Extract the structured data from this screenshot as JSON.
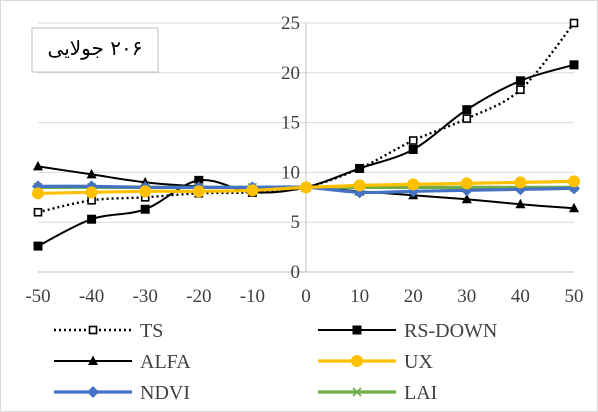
{
  "chart_data": {
    "type": "line",
    "title": "",
    "annotation": "۲۰۶ جولایی",
    "xlabel": "",
    "ylabel": "",
    "x": [
      -50,
      -40,
      -30,
      -20,
      -10,
      0,
      10,
      20,
      30,
      40,
      50
    ],
    "x_tick_labels": [
      "-50",
      "-40",
      "-30",
      "-20",
      "-10",
      "0",
      "10",
      "20",
      "30",
      "40",
      "50"
    ],
    "y_tick_labels": [
      "0",
      "5",
      "10",
      "15",
      "20",
      "25"
    ],
    "ylim": [
      0,
      25
    ],
    "y_ticks": [
      0,
      5,
      10,
      15,
      20,
      25
    ],
    "grid": "horizontal",
    "legend_position": "bottom",
    "series": [
      {
        "name": "TS",
        "color": "#000000",
        "dash": "dotted",
        "marker": "hollow-square",
        "values": [
          6.0,
          7.2,
          7.5,
          7.9,
          8.0,
          8.5,
          10.4,
          13.2,
          15.4,
          18.3,
          25.0
        ]
      },
      {
        "name": "RS-DOWN",
        "color": "#000000",
        "dash": "solid",
        "marker": "square",
        "values": [
          2.6,
          5.3,
          6.3,
          9.2,
          8.0,
          8.5,
          10.4,
          12.3,
          16.3,
          19.2,
          20.8
        ]
      },
      {
        "name": "ALFA",
        "color": "#000000",
        "dash": "solid",
        "marker": "triangle",
        "values": [
          10.6,
          9.8,
          9.0,
          8.6,
          8.4,
          8.5,
          8.1,
          7.7,
          7.3,
          6.8,
          6.4
        ]
      },
      {
        "name": "UX",
        "color": "#FFC000",
        "dash": "solid",
        "marker": "circle",
        "values": [
          7.9,
          8.0,
          8.1,
          8.1,
          8.2,
          8.5,
          8.7,
          8.8,
          8.9,
          9.0,
          9.1
        ]
      },
      {
        "name": "NDVI",
        "color": "#4472C4",
        "dash": "solid",
        "marker": "diamond",
        "values": [
          8.6,
          8.6,
          8.5,
          8.5,
          8.5,
          8.5,
          8.0,
          8.1,
          8.2,
          8.3,
          8.4
        ]
      },
      {
        "name": "LAI",
        "color": "#70AD47",
        "dash": "solid",
        "marker": "x",
        "values": [
          8.5,
          8.5,
          8.5,
          8.5,
          8.5,
          8.5,
          8.5,
          8.5,
          8.5,
          8.5,
          8.5
        ]
      }
    ]
  }
}
